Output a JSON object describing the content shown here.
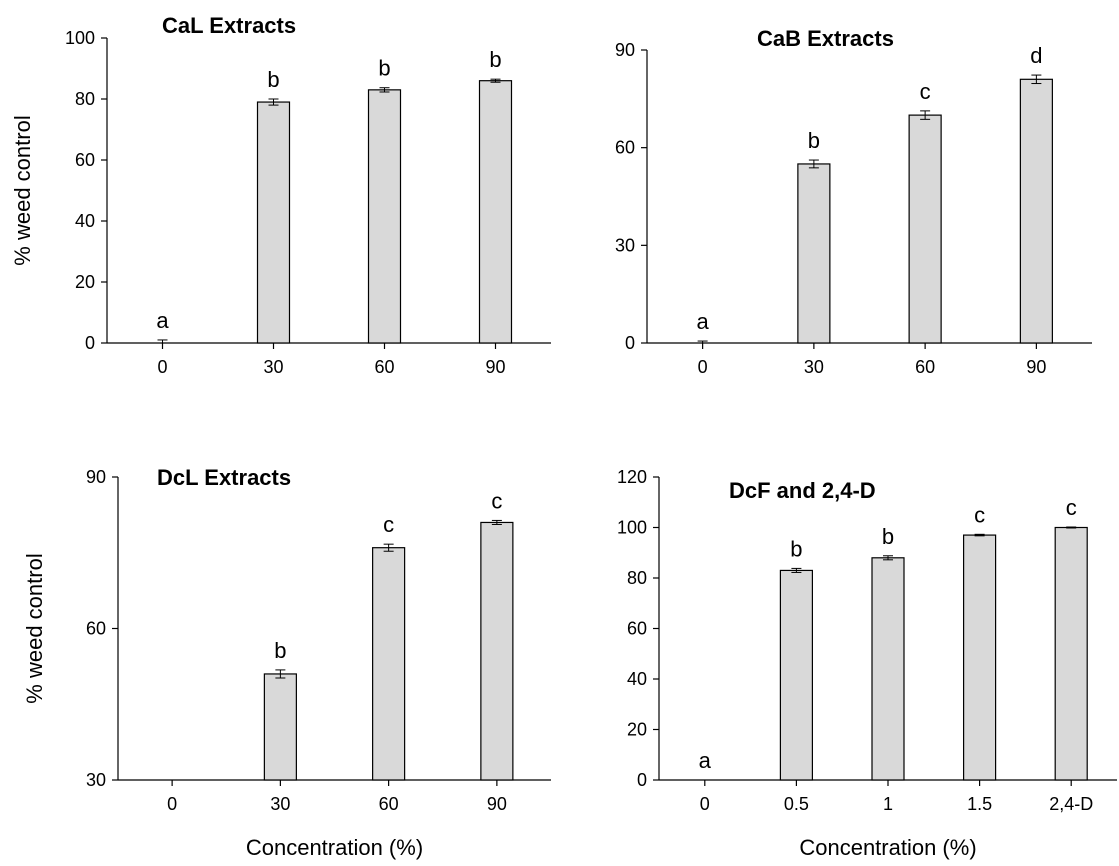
{
  "chart_data": [
    {
      "type": "bar",
      "title": "CaL Extracts",
      "ylabel": "% weed control",
      "xlabel": "",
      "categories": [
        "0",
        "30",
        "60",
        "90"
      ],
      "values": [
        0,
        79,
        83,
        86
      ],
      "errors": [
        1.0,
        1.0,
        0.7,
        0.5
      ],
      "letters": [
        "a",
        "b",
        "b",
        "b"
      ],
      "ylim": [
        0,
        100
      ],
      "yticks": [
        0,
        20,
        40,
        60,
        80,
        100
      ]
    },
    {
      "type": "bar",
      "title": "CaB Extracts",
      "ylabel": "",
      "xlabel": "",
      "categories": [
        "0",
        "30",
        "60",
        "90"
      ],
      "values": [
        0,
        55,
        70,
        81
      ],
      "errors": [
        0.6,
        1.2,
        1.3,
        1.3
      ],
      "letters": [
        "a",
        "b",
        "c",
        "d"
      ],
      "ylim": [
        0,
        90
      ],
      "yticks": [
        0,
        30,
        60,
        90
      ]
    },
    {
      "type": "bar",
      "title": "DcL Extracts",
      "ylabel": "% weed control",
      "xlabel": "Concentration (%)",
      "categories": [
        "0",
        "30",
        "60",
        "90"
      ],
      "values": [
        30,
        51,
        76,
        81
      ],
      "errors": [
        0,
        0.8,
        0.7,
        0.4
      ],
      "letters": [
        "",
        "b",
        "c",
        "c"
      ],
      "ylim": [
        30,
        90
      ],
      "yticks": [
        30,
        60,
        90
      ]
    },
    {
      "type": "bar",
      "title": "DcF and 2,4-D",
      "ylabel": "",
      "xlabel": "Concentration (%)",
      "categories": [
        "0",
        "0.5",
        "1",
        "1.5",
        "2,4-D"
      ],
      "values": [
        0,
        83,
        88,
        97,
        100
      ],
      "errors": [
        0,
        0.8,
        0.8,
        0.3,
        0.2
      ],
      "letters": [
        "a",
        "b",
        "b",
        "c",
        "c"
      ],
      "ylim": [
        0,
        120
      ],
      "yticks": [
        0,
        20,
        40,
        60,
        80,
        100,
        120
      ]
    }
  ]
}
